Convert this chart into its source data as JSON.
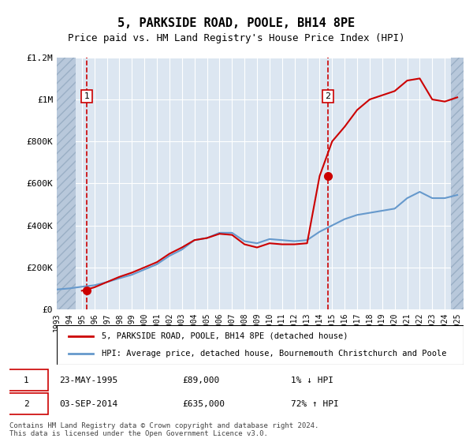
{
  "title": "5, PARKSIDE ROAD, POOLE, BH14 8PE",
  "subtitle": "Price paid vs. HM Land Registry's House Price Index (HPI)",
  "legend_line1": "5, PARKSIDE ROAD, POOLE, BH14 8PE (detached house)",
  "legend_line2": "HPI: Average price, detached house, Bournemouth Christchurch and Poole",
  "footnote": "Contains HM Land Registry data © Crown copyright and database right 2024.\nThis data is licensed under the Open Government Licence v3.0.",
  "annotation1_label": "1",
  "annotation1_date": "23-MAY-1995",
  "annotation1_price": "£89,000",
  "annotation1_hpi": "1% ↓ HPI",
  "annotation2_label": "2",
  "annotation2_date": "03-SEP-2014",
  "annotation2_price": "£635,000",
  "annotation2_hpi": "72% ↑ HPI",
  "sale1_year": 1995.39,
  "sale1_price": 89000,
  "sale2_year": 2014.67,
  "sale2_price": 635000,
  "ylim": [
    0,
    1200000
  ],
  "xlim_left": 1993.0,
  "xlim_right": 2025.5,
  "background_color": "#dce6f1",
  "hatch_color": "#b8c8db",
  "grid_color": "#ffffff",
  "red_color": "#cc0000",
  "blue_color": "#6699cc",
  "title_fontsize": 11,
  "subtitle_fontsize": 9,
  "axis_fontsize": 8,
  "hpi_years": [
    1993,
    1994,
    1995,
    1996,
    1997,
    1998,
    1999,
    2000,
    2001,
    2002,
    2003,
    2004,
    2005,
    2006,
    2007,
    2008,
    2009,
    2010,
    2011,
    2012,
    2013,
    2014,
    2015,
    2016,
    2017,
    2018,
    2019,
    2020,
    2021,
    2022,
    2023,
    2024,
    2025
  ],
  "hpi_values": [
    95000,
    100000,
    108000,
    115000,
    130000,
    148000,
    165000,
    190000,
    215000,
    255000,
    285000,
    330000,
    340000,
    365000,
    365000,
    325000,
    315000,
    335000,
    330000,
    325000,
    330000,
    370000,
    400000,
    430000,
    450000,
    460000,
    470000,
    480000,
    530000,
    560000,
    530000,
    530000,
    545000
  ],
  "price_years": [
    1993,
    1994,
    1995,
    1996,
    1997,
    1998,
    1999,
    2000,
    2001,
    2002,
    2003,
    2004,
    2005,
    2006,
    2007,
    2008,
    2009,
    2010,
    2011,
    2012,
    2013,
    2014,
    2015,
    2016,
    2017,
    2018,
    2019,
    2020,
    2021,
    2022,
    2023,
    2024,
    2025
  ],
  "price_values": [
    null,
    null,
    89000,
    105000,
    130000,
    155000,
    175000,
    200000,
    225000,
    265000,
    295000,
    330000,
    340000,
    360000,
    355000,
    310000,
    295000,
    315000,
    310000,
    310000,
    315000,
    635000,
    800000,
    870000,
    950000,
    1000000,
    1020000,
    1040000,
    1090000,
    1100000,
    1000000,
    990000,
    1010000
  ],
  "xtick_years": [
    1993,
    1994,
    1995,
    1996,
    1997,
    1998,
    1999,
    2000,
    2001,
    2002,
    2003,
    2004,
    2005,
    2006,
    2007,
    2008,
    2009,
    2010,
    2011,
    2012,
    2013,
    2014,
    2015,
    2016,
    2017,
    2018,
    2019,
    2020,
    2021,
    2022,
    2023,
    2024,
    2025
  ]
}
